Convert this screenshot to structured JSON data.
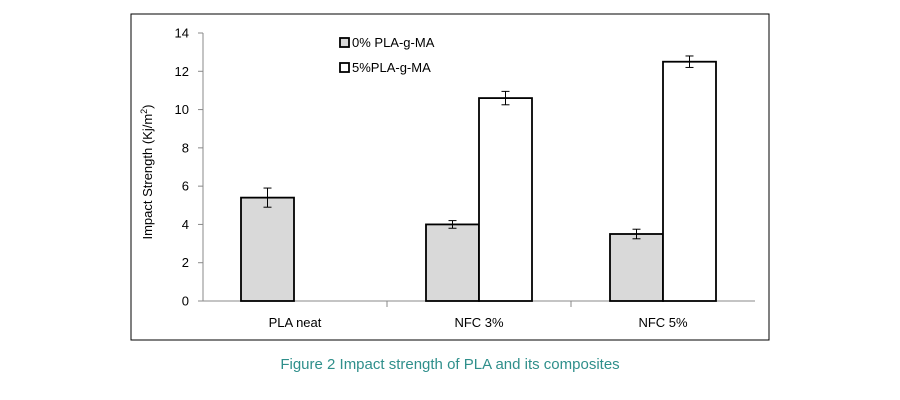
{
  "caption": "Figure 2 Impact strength of PLA and its composites",
  "chart_data": {
    "type": "bar",
    "title": "",
    "xlabel": "",
    "ylabel": "Impact Strength (Kj/m",
    "ylabel_sup": "2",
    "ylabel_end": ")",
    "ylim": [
      0,
      14
    ],
    "yticks": [
      0,
      2,
      4,
      6,
      8,
      10,
      12,
      14
    ],
    "categories": [
      "PLA neat",
      "NFC 3%",
      "NFC 5%"
    ],
    "legend_position": "top-center",
    "grid": false,
    "series": [
      {
        "name": "0% PLA-g-MA",
        "color": "#d9d9d9",
        "values": [
          5.4,
          4.0,
          3.5
        ],
        "errors": [
          0.5,
          0.2,
          0.25
        ]
      },
      {
        "name": "5%PLA-g-MA",
        "color": "#ffffff",
        "values": [
          null,
          10.6,
          12.5
        ],
        "errors": [
          null,
          0.35,
          0.3
        ]
      }
    ]
  }
}
